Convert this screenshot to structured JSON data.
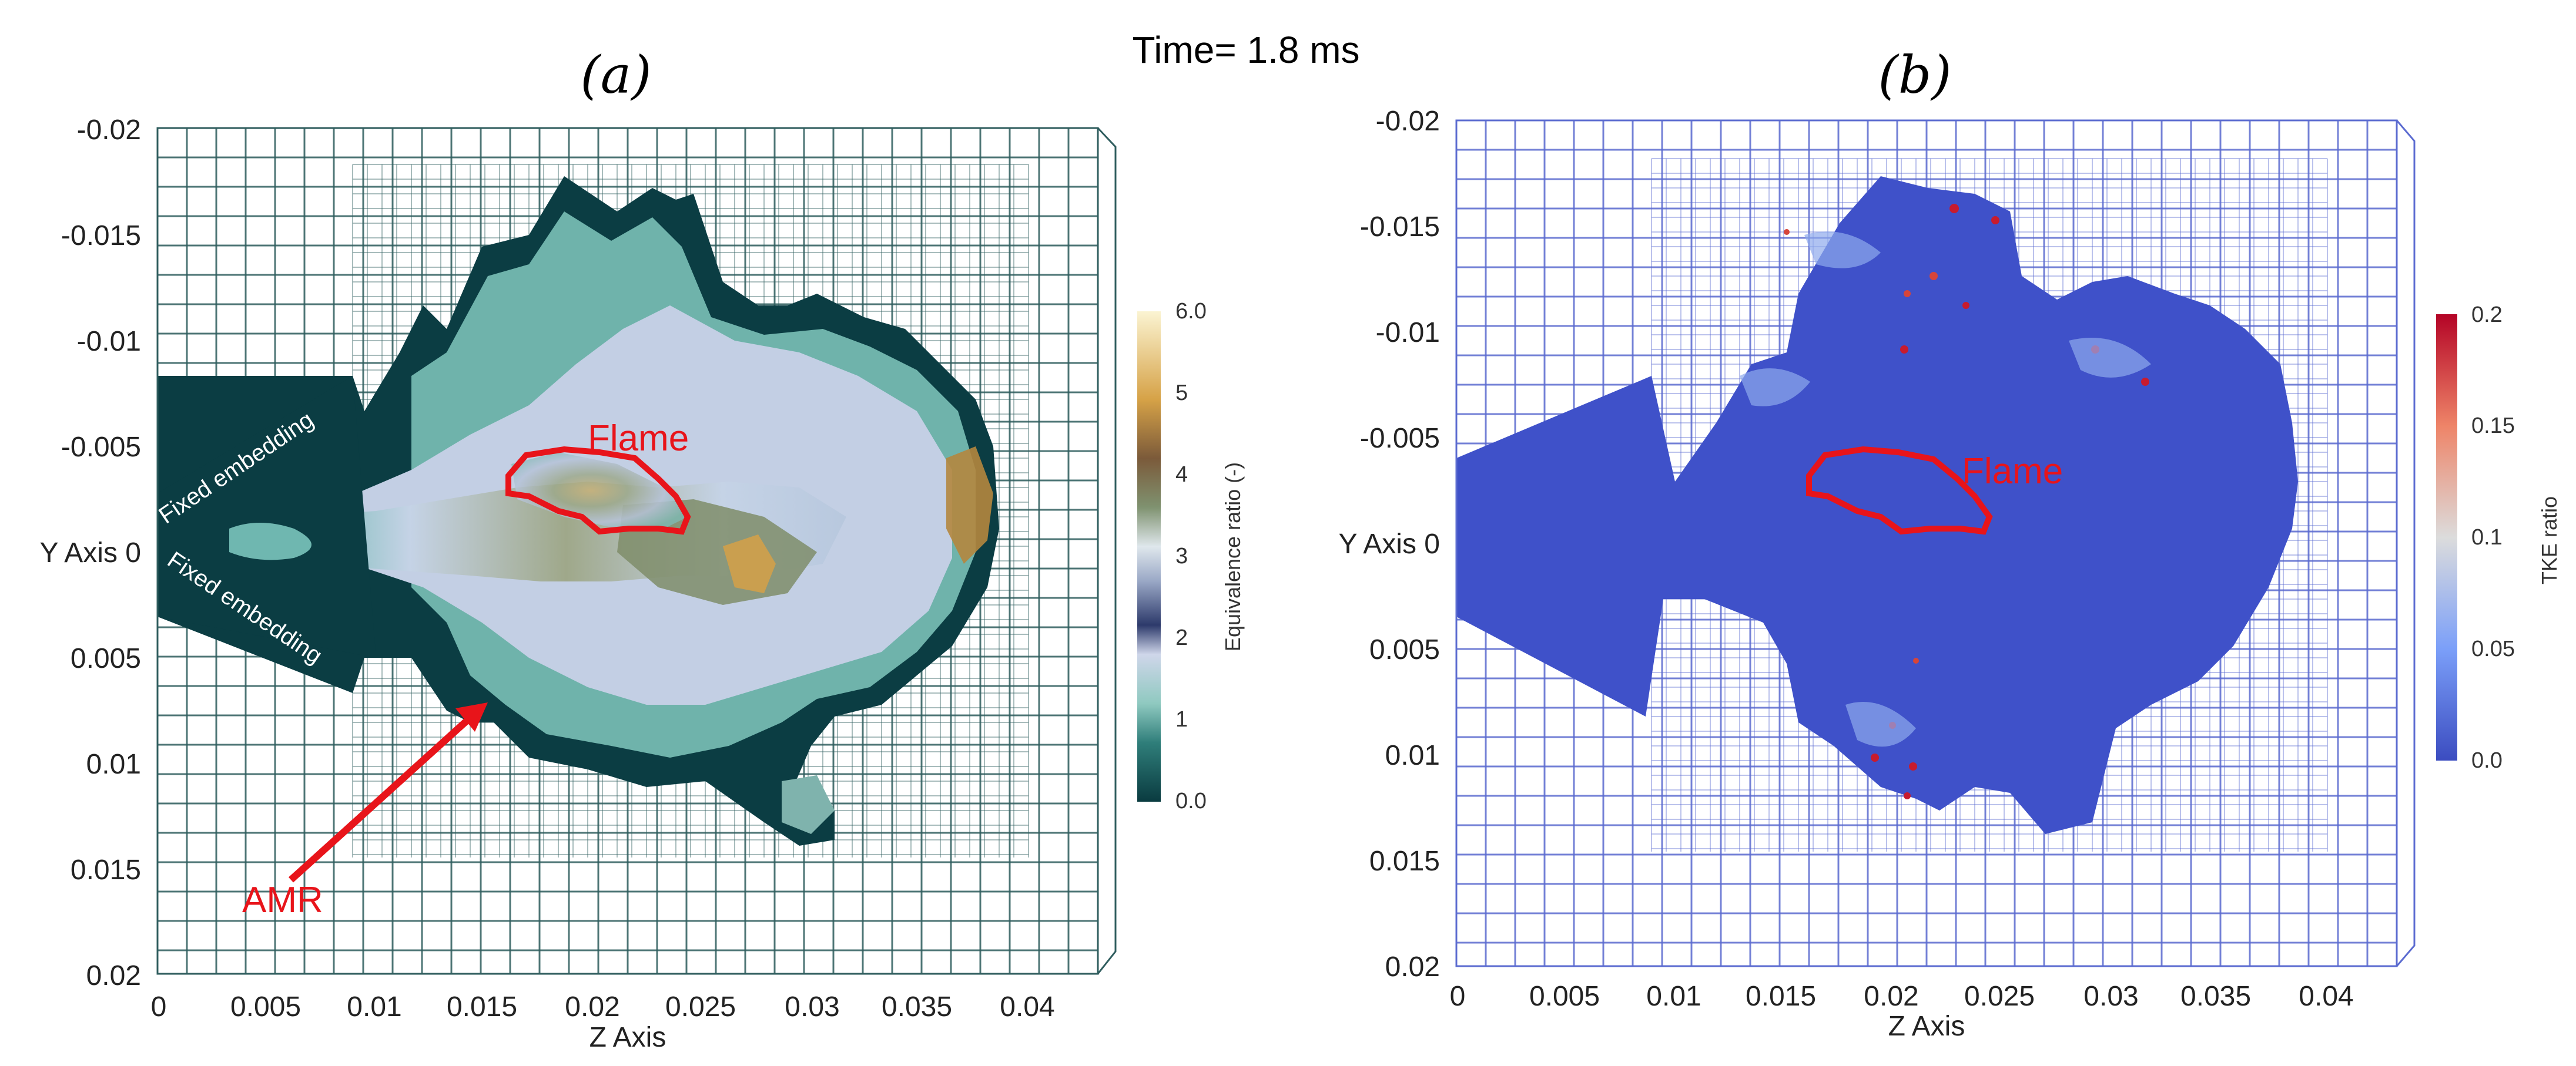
{
  "figure": {
    "time_label": "Time= 1.8 ms"
  },
  "chart_data": [
    {
      "type": "heatmap",
      "panel_label": "(a)",
      "title": "",
      "xlabel": "Z Axis",
      "ylabel": "Y Axis",
      "x_ticks": [
        "0",
        "0.005",
        "0.01",
        "0.015",
        "0.02",
        "0.025",
        "0.03",
        "0.035",
        "0.04"
      ],
      "y_ticks": [
        "-0.02",
        "-0.015",
        "-0.01",
        "-0.005",
        "0",
        "0.005",
        "0.01",
        "0.015",
        "0.02"
      ],
      "y_axis_zero_label": "Y Axis 0",
      "xlim": [
        0,
        0.044
      ],
      "ylim": [
        -0.02,
        0.02
      ],
      "colorbar": {
        "label": "Equivalence ratio (-)",
        "ticks": [
          "0.0",
          "1",
          "2",
          "3",
          "4",
          "5",
          "6.0"
        ],
        "range": [
          0,
          6
        ],
        "colormap": [
          "#0a3b40",
          "#4a9e96",
          "#b9d9d6",
          "#c9cfe6",
          "#2e3a6b",
          "#d6dfe8",
          "#7a8f6a",
          "#7b5a3a",
          "#d6a247",
          "#faf2c8"
        ]
      },
      "annotations": {
        "flame": "Flame",
        "amr": "AMR",
        "fixed_embedding_top": "Fixed embedding",
        "fixed_embedding_bottom": "Fixed embedding"
      }
    },
    {
      "type": "heatmap",
      "panel_label": "(b)",
      "title": "",
      "xlabel": "Z Axis",
      "ylabel": "Y Axis",
      "x_ticks": [
        "0",
        "0.005",
        "0.01",
        "0.015",
        "0.02",
        "0.025",
        "0.03",
        "0.035",
        "0.04"
      ],
      "y_ticks": [
        "-0.02",
        "-0.015",
        "-0.01",
        "-0.005",
        "0",
        "0.005",
        "0.01",
        "0.015",
        "0.02"
      ],
      "y_axis_zero_label": "Y Axis 0",
      "xlim": [
        0,
        0.044
      ],
      "ylim": [
        -0.02,
        0.02
      ],
      "colorbar": {
        "label": "TKE ratio",
        "ticks": [
          "0.0",
          "0.05",
          "0.1",
          "0.15",
          "0.2"
        ],
        "range": [
          0,
          0.2
        ],
        "colormap": [
          "#3b4cc0",
          "#7b9ff9",
          "#c0d4f5",
          "#dddcdc",
          "#f2cbb7",
          "#ee8468",
          "#b40426"
        ]
      },
      "annotations": {
        "flame": "Flame"
      }
    }
  ],
  "colors": {
    "mesh_a": "#2f5d5e",
    "mesh_b": "#5b6bd0",
    "annotation_red": "#e8141a",
    "domain_dark": "#0b3d43",
    "domain_blue": "#3f51c9"
  }
}
